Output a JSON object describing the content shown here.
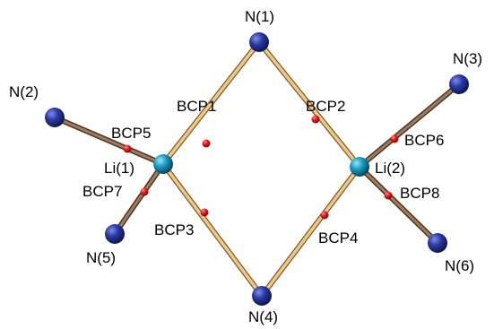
{
  "diagram": {
    "atoms": [
      {
        "id": "N1",
        "label": "N(1)",
        "element": "N"
      },
      {
        "id": "N2",
        "label": "N(2)",
        "element": "N"
      },
      {
        "id": "N3",
        "label": "N(3)",
        "element": "N"
      },
      {
        "id": "N4",
        "label": "N(4)",
        "element": "N"
      },
      {
        "id": "N5",
        "label": "N(5)",
        "element": "N"
      },
      {
        "id": "N6",
        "label": "N(6)",
        "element": "N"
      },
      {
        "id": "Li1",
        "label": "Li(1)",
        "element": "Li"
      },
      {
        "id": "Li2",
        "label": "Li(2)",
        "element": "Li"
      }
    ],
    "bonds": [
      {
        "from": "Li1",
        "to": "N1",
        "style": "ring"
      },
      {
        "from": "N1",
        "to": "Li2",
        "style": "ring"
      },
      {
        "from": "Li1",
        "to": "N4",
        "style": "ring"
      },
      {
        "from": "N4",
        "to": "Li2",
        "style": "ring"
      },
      {
        "from": "Li1",
        "to": "N2",
        "style": "dark"
      },
      {
        "from": "Li1",
        "to": "N5",
        "style": "dark"
      },
      {
        "from": "Li2",
        "to": "N3",
        "style": "dark"
      },
      {
        "from": "Li2",
        "to": "N6",
        "style": "dark"
      }
    ],
    "bond_critical_points": [
      {
        "id": "BCP1",
        "label": "BCP1"
      },
      {
        "id": "BCP2",
        "label": "BCP2"
      },
      {
        "id": "BCP3",
        "label": "BCP3"
      },
      {
        "id": "BCP4",
        "label": "BCP4"
      },
      {
        "id": "BCP5",
        "label": "BCP5"
      },
      {
        "id": "BCP6",
        "label": "BCP6"
      },
      {
        "id": "BCP7",
        "label": "BCP7"
      },
      {
        "id": "BCP8",
        "label": "BCP8"
      }
    ],
    "colors": {
      "nitrogen": "#1f2d8f",
      "lithium": "#1591b8",
      "bcp": "#e21414",
      "ring_bond": "#e7c27e",
      "dark_bond": "#7c5a40"
    }
  }
}
